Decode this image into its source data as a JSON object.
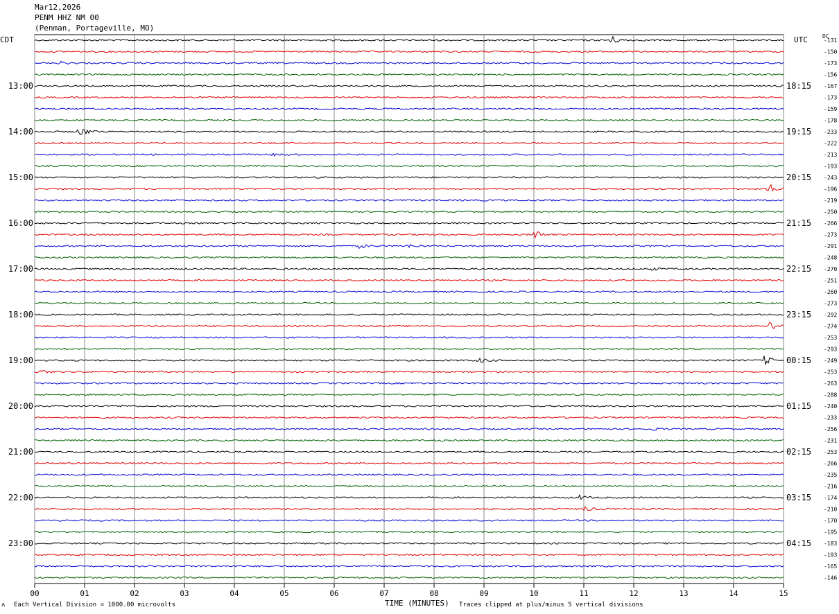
{
  "header": {
    "date": "Mar12,2026",
    "station": "PENM HHZ NM 00",
    "location": "(Penman, Portageville, MO)"
  },
  "labels": {
    "left_tz": "CDT",
    "right_tz": "UTC",
    "dc_label": "DC"
  },
  "footer": {
    "scale_note": "Each Vertical Division = 1000.00 microvolts",
    "clip_note": "Traces clipped at plus/minus 5 vertical divisions"
  },
  "chart_data": {
    "type": "line",
    "subtype": "helicorder",
    "xlabel": "TIME (MINUTES)",
    "x_ticks": [
      "00",
      "01",
      "02",
      "03",
      "04",
      "05",
      "06",
      "07",
      "08",
      "09",
      "10",
      "11",
      "12",
      "13",
      "14",
      "15"
    ],
    "xlim": [
      0,
      15
    ],
    "grid": true,
    "trace_colors": [
      "#000000",
      "#e00000",
      "#0000d0",
      "#006000"
    ],
    "left_hour_labels": [
      "13:00",
      "14:00",
      "15:00",
      "16:00",
      "17:00",
      "18:00",
      "19:00",
      "20:00",
      "21:00",
      "22:00",
      "23:00"
    ],
    "right_hour_labels": [
      "18:15",
      "19:15",
      "20:15",
      "21:15",
      "22:15",
      "23:15",
      "00:15",
      "01:15",
      "02:15",
      "03:15",
      "04:15"
    ],
    "dc_offsets": [
      -131,
      -150,
      -173,
      -156,
      -167,
      -173,
      -159,
      -178,
      -233,
      -222,
      -213,
      -193,
      -243,
      -196,
      -219,
      -250,
      -266,
      -273,
      -291,
      -248,
      -270,
      -251,
      -260,
      -273,
      -292,
      -274,
      -253,
      -293,
      -249,
      -253,
      -263,
      -288,
      -240,
      -233,
      -256,
      -231,
      -253,
      -266,
      -235,
      -216,
      -174,
      -210,
      -170,
      -195,
      -183,
      -193,
      -165,
      -146
    ],
    "events": [
      {
        "trace": 0,
        "minute": 11.5,
        "amplitude": 1.0
      },
      {
        "trace": 2,
        "minute": 0.5,
        "amplitude": 0.3
      },
      {
        "trace": 8,
        "minute": 0.9,
        "amplitude": 0.9
      },
      {
        "trace": 10,
        "minute": 4.8,
        "amplitude": 0.3
      },
      {
        "trace": 13,
        "minute": 14.7,
        "amplitude": 1.0
      },
      {
        "trace": 17,
        "minute": 10.0,
        "amplitude": 0.8
      },
      {
        "trace": 18,
        "minute": 6.5,
        "amplitude": 0.35
      },
      {
        "trace": 18,
        "minute": 7.5,
        "amplitude": 0.3
      },
      {
        "trace": 20,
        "minute": 12.3,
        "amplitude": 0.35
      },
      {
        "trace": 25,
        "minute": 14.7,
        "amplitude": 1.0
      },
      {
        "trace": 28,
        "minute": 8.9,
        "amplitude": 0.4
      },
      {
        "trace": 28,
        "minute": 14.6,
        "amplitude": 0.9
      },
      {
        "trace": 29,
        "minute": 0.1,
        "amplitude": 0.35
      },
      {
        "trace": 34,
        "minute": 12.3,
        "amplitude": 0.35
      },
      {
        "trace": 40,
        "minute": 10.9,
        "amplitude": 0.4
      },
      {
        "trace": 41,
        "minute": 11.0,
        "amplitude": 0.4
      }
    ]
  }
}
